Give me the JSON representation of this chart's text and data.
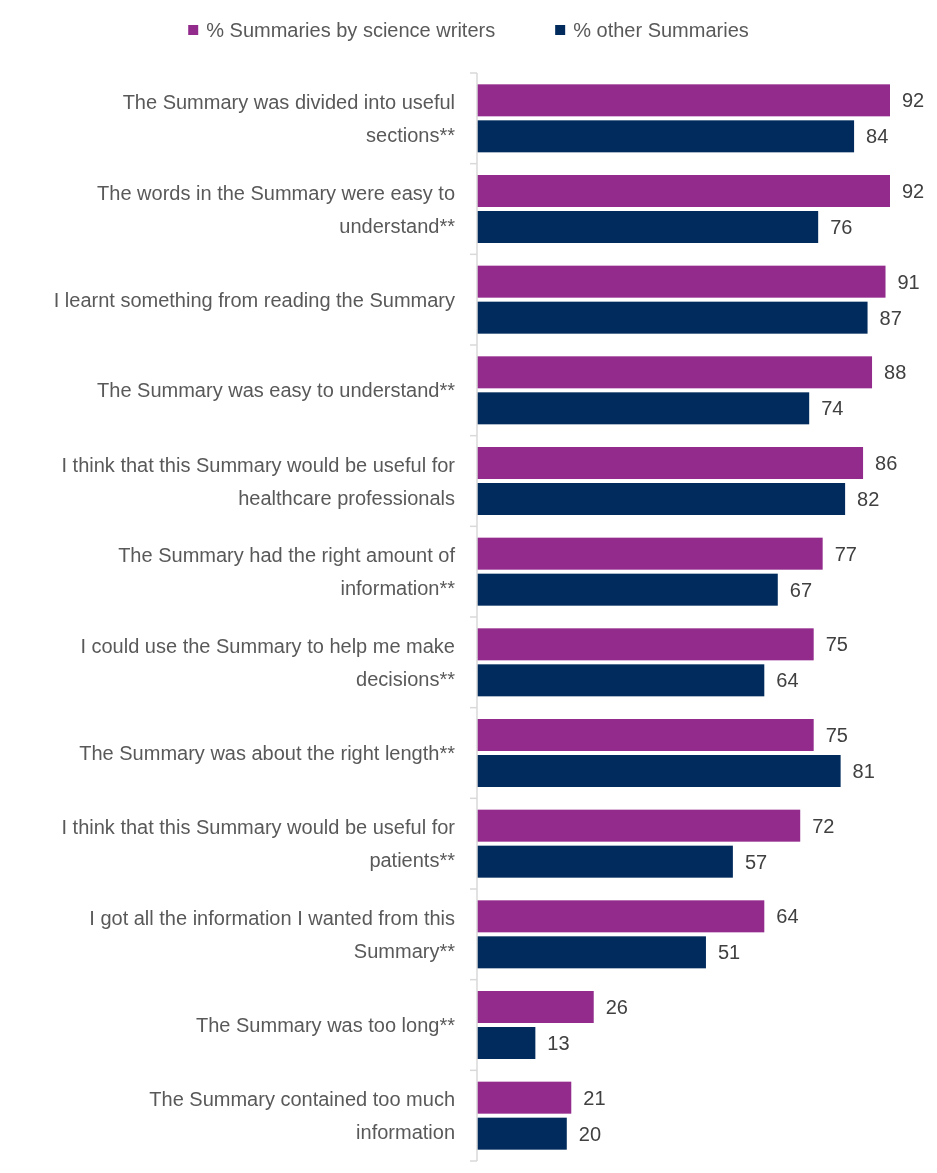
{
  "chart_data": {
    "type": "bar",
    "orientation": "horizontal",
    "data_labels": true,
    "legend": "top",
    "categories": [
      "The Summary was divided into useful sections**",
      "The words in the Summary were easy to understand**",
      "I learnt something from reading the Summary",
      "The Summary was easy to understand**",
      "I think that this Summary would be useful for healthcare professionals",
      "The Summary had the right amount of information**",
      "I could use the Summary to help me make decisions**",
      "The Summary was about the right length**",
      "I think that this Summary would be useful for patients**",
      "I got all the information I wanted from this Summary**",
      "The Summary was too long**",
      "The Summary contained too much information"
    ],
    "series": [
      {
        "name": "% Summaries by science writers",
        "color": "#922b8c",
        "values": [
          92,
          92,
          91,
          88,
          86,
          77,
          75,
          75,
          72,
          64,
          26,
          21
        ]
      },
      {
        "name": "% other Summaries",
        "color": "#002b5c",
        "values": [
          84,
          76,
          87,
          74,
          82,
          67,
          64,
          81,
          57,
          51,
          13,
          20
        ]
      }
    ]
  }
}
